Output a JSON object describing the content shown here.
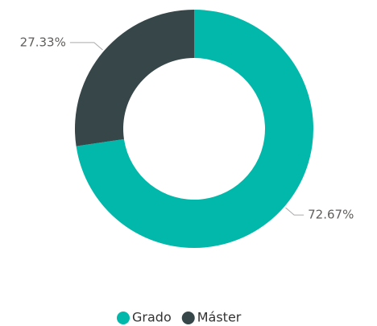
{
  "chart_data": {
    "type": "pie",
    "donut": true,
    "categories": [
      "Grado",
      "Máster"
    ],
    "values": [
      72.67,
      27.33
    ],
    "value_labels": [
      "72.67%",
      "27.33%"
    ],
    "colors": [
      "#01b8aa",
      "#374649"
    ],
    "legend": "bottom"
  }
}
